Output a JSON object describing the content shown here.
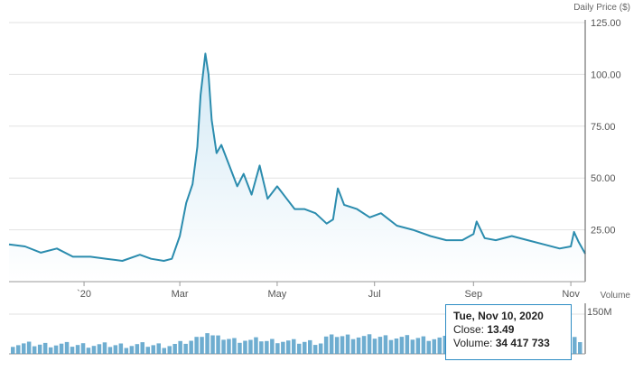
{
  "chart_data": {
    "type": "line",
    "title": "Daily Price ($)",
    "y_ticks": [
      "125.00",
      "100.00",
      "75.00",
      "50.00",
      "25.00"
    ],
    "y_tick_values": [
      125,
      100,
      75,
      50,
      25
    ],
    "ylim": [
      0,
      125
    ],
    "x_tick_labels": [
      "`20",
      "Mar",
      "May",
      "Jul",
      "Sep",
      "Nov"
    ],
    "x_tick_dates": [
      "2020-01-01",
      "2020-03-01",
      "2020-05-01",
      "2020-07-01",
      "2020-09-01",
      "2020-11-01"
    ],
    "xlim": [
      "2019-11-15",
      "2020-11-10"
    ],
    "grid": "horizontal",
    "series": [
      {
        "color": "#2b8cae",
        "x": [
          "2019-11-15",
          "2019-11-25",
          "2019-12-05",
          "2019-12-15",
          "2019-12-25",
          "2020-01-05",
          "2020-01-15",
          "2020-01-25",
          "2020-02-05",
          "2020-02-12",
          "2020-02-20",
          "2020-02-25",
          "2020-03-01",
          "2020-03-05",
          "2020-03-09",
          "2020-03-12",
          "2020-03-14",
          "2020-03-17",
          "2020-03-19",
          "2020-03-21",
          "2020-03-24",
          "2020-03-27",
          "2020-04-01",
          "2020-04-06",
          "2020-04-10",
          "2020-04-15",
          "2020-04-20",
          "2020-04-25",
          "2020-05-01",
          "2020-05-07",
          "2020-05-12",
          "2020-05-18",
          "2020-05-25",
          "2020-06-01",
          "2020-06-05",
          "2020-06-08",
          "2020-06-12",
          "2020-06-20",
          "2020-06-28",
          "2020-07-05",
          "2020-07-15",
          "2020-07-25",
          "2020-08-05",
          "2020-08-15",
          "2020-08-25",
          "2020-09-01",
          "2020-09-03",
          "2020-09-08",
          "2020-09-15",
          "2020-09-25",
          "2020-10-05",
          "2020-10-15",
          "2020-10-25",
          "2020-11-01",
          "2020-11-03",
          "2020-11-06",
          "2020-11-10"
        ],
        "y": [
          18,
          17,
          14,
          16,
          12,
          12,
          11,
          10,
          13,
          11,
          10,
          11,
          22,
          38,
          47,
          65,
          90,
          110,
          100,
          78,
          62,
          66,
          56,
          46,
          52,
          42,
          56,
          40,
          46,
          40,
          35,
          35,
          33,
          28,
          30,
          45,
          37,
          35,
          31,
          33,
          27,
          25,
          22,
          20,
          20,
          23,
          29,
          21,
          20,
          22,
          20,
          18,
          16,
          17,
          24,
          19,
          13.49
        ]
      }
    ],
    "volume": {
      "label": "Volume",
      "tick": "150M",
      "max": 150
    },
    "tooltip": {
      "date": "Tue, Nov 10, 2020",
      "close_label": "Close:",
      "close_value": "13.49",
      "volume_label": "Volume:",
      "volume_value": "34 417 733"
    }
  },
  "colors": {
    "line": "#2b8cae",
    "area_top": "#d7ecf6",
    "volume_bar": "#4a98c4",
    "grid": "#e2e2e2",
    "axis": "#555555"
  }
}
